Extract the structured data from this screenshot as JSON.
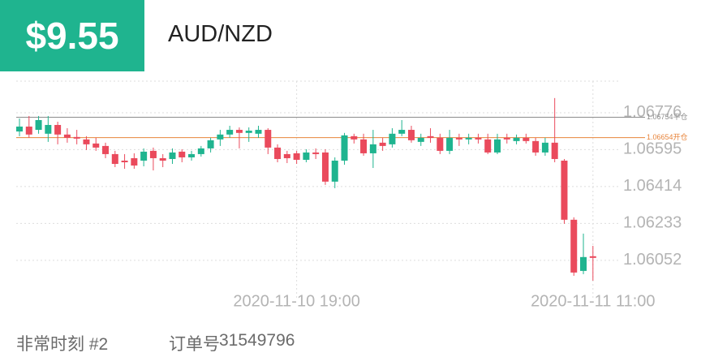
{
  "header": {
    "price": "$9.55",
    "symbol": "AUD/NZD"
  },
  "chart_data": {
    "type": "candlestick",
    "categories": [
      null,
      null,
      null,
      null,
      null,
      null,
      null,
      null,
      null,
      null,
      null,
      null,
      null,
      null,
      null,
      null,
      null,
      null,
      null,
      null,
      null,
      null,
      null,
      null,
      null,
      null,
      null,
      null,
      null,
      "2020-11-10 19:00",
      null,
      null,
      null,
      null,
      null,
      null,
      null,
      null,
      null,
      null,
      null,
      null,
      null,
      null,
      null,
      null,
      null,
      null,
      null,
      null,
      null,
      null,
      null,
      null,
      null,
      null,
      null,
      null,
      null,
      null,
      "2020-11-11 11:00"
    ],
    "open": [
      1.06684,
      1.06708,
      1.06692,
      1.06673,
      1.06716,
      1.06669,
      1.06657,
      1.06645,
      1.06625,
      1.06613,
      1.06573,
      1.06541,
      1.06553,
      1.06541,
      1.06589,
      1.06553,
      1.06549,
      1.06585,
      1.06557,
      1.06573,
      1.06601,
      1.06645,
      1.06669,
      1.06692,
      1.06677,
      1.06673,
      1.06692,
      1.06605,
      1.06573,
      1.06577,
      1.06545,
      1.06581,
      1.06581,
      1.06438,
      1.06541,
      1.06661,
      1.06645,
      1.06577,
      1.06629,
      1.06621,
      1.06673,
      1.06692,
      1.06633,
      1.06661,
      1.06653,
      1.06589,
      1.06653,
      1.06645,
      1.06653,
      1.06645,
      1.06581,
      1.06653,
      1.06637,
      1.06653,
      1.06637,
      1.06581,
      1.06629,
      1.06541,
      1.06251,
      1.06,
      1.06072
    ],
    "high": [
      1.06748,
      1.0676,
      1.0676,
      1.0676,
      1.06732,
      1.067,
      1.06692,
      1.06661,
      1.06653,
      1.06629,
      1.06589,
      1.06573,
      1.06577,
      1.06601,
      1.06605,
      1.06573,
      1.06601,
      1.06597,
      1.06589,
      1.06613,
      1.06653,
      1.06692,
      1.06712,
      1.06704,
      1.06704,
      1.06712,
      1.067,
      1.06621,
      1.06589,
      1.06589,
      1.06597,
      1.06601,
      1.06597,
      1.06557,
      1.06677,
      1.06673,
      1.06673,
      1.06692,
      1.06653,
      1.067,
      1.0674,
      1.06712,
      1.06673,
      1.067,
      1.06673,
      1.06692,
      1.06673,
      1.06673,
      1.06673,
      1.06673,
      1.06673,
      1.06673,
      1.06669,
      1.06673,
      1.06653,
      1.06653,
      1.06848,
      1.06549,
      1.06263,
      1.06183,
      1.06123
    ],
    "low": [
      1.06661,
      1.06653,
      1.06673,
      1.06633,
      1.06621,
      1.06629,
      1.06621,
      1.06593,
      1.06589,
      1.06553,
      1.06509,
      1.06501,
      1.06501,
      1.06513,
      1.06493,
      1.06509,
      1.06525,
      1.06533,
      1.06541,
      1.06561,
      1.06581,
      1.06613,
      1.06653,
      1.06601,
      1.06633,
      1.06653,
      1.06573,
      1.06533,
      1.06529,
      1.06525,
      1.06533,
      1.06549,
      1.06422,
      1.06406,
      1.06521,
      1.06625,
      1.06565,
      1.06505,
      1.06589,
      1.06605,
      1.06661,
      1.06629,
      1.06613,
      1.06629,
      1.06573,
      1.06573,
      1.06613,
      1.06621,
      1.06625,
      1.06573,
      1.06573,
      1.06625,
      1.06621,
      1.06625,
      1.06565,
      1.06565,
      1.06533,
      1.06231,
      1.05976,
      1.05984,
      1.05952
    ],
    "close": [
      1.06708,
      1.06669,
      1.0674,
      1.06716,
      1.06669,
      1.06653,
      1.06649,
      1.06621,
      1.06605,
      1.06573,
      1.06525,
      1.06533,
      1.06517,
      1.06585,
      1.06553,
      1.06541,
      1.06581,
      1.06557,
      1.06573,
      1.06601,
      1.06641,
      1.06669,
      1.06692,
      1.06677,
      1.06688,
      1.06692,
      1.06605,
      1.06549,
      1.06553,
      1.06545,
      1.06581,
      1.06573,
      1.06438,
      1.06541,
      1.06665,
      1.06645,
      1.06577,
      1.06621,
      1.06613,
      1.06673,
      1.06692,
      1.06641,
      1.06653,
      1.06653,
      1.06589,
      1.06653,
      1.06645,
      1.06653,
      1.06645,
      1.06581,
      1.06645,
      1.06645,
      1.06653,
      1.06637,
      1.06581,
      1.06629,
      1.06549,
      1.06251,
      1.05992,
      1.06068,
      1.06064
    ],
    "up_color": "#1fb48f",
    "down_color": "#ea4a5c",
    "ylim": [
      1.05916,
      1.06931
    ],
    "yticks": [
      1.06776,
      1.06595,
      1.06414,
      1.06233,
      1.06052
    ],
    "grid": true,
    "reference_lines": [
      {
        "value": 1.06754,
        "label": "1.06754平仓",
        "color": "#8c8c8c"
      },
      {
        "value": 1.06654,
        "label": "1.06654开仓",
        "color": "#e8843a"
      }
    ]
  },
  "footer": {
    "event": "非常时刻 #2",
    "order_label": "订单号",
    "order_number": "31549796"
  }
}
